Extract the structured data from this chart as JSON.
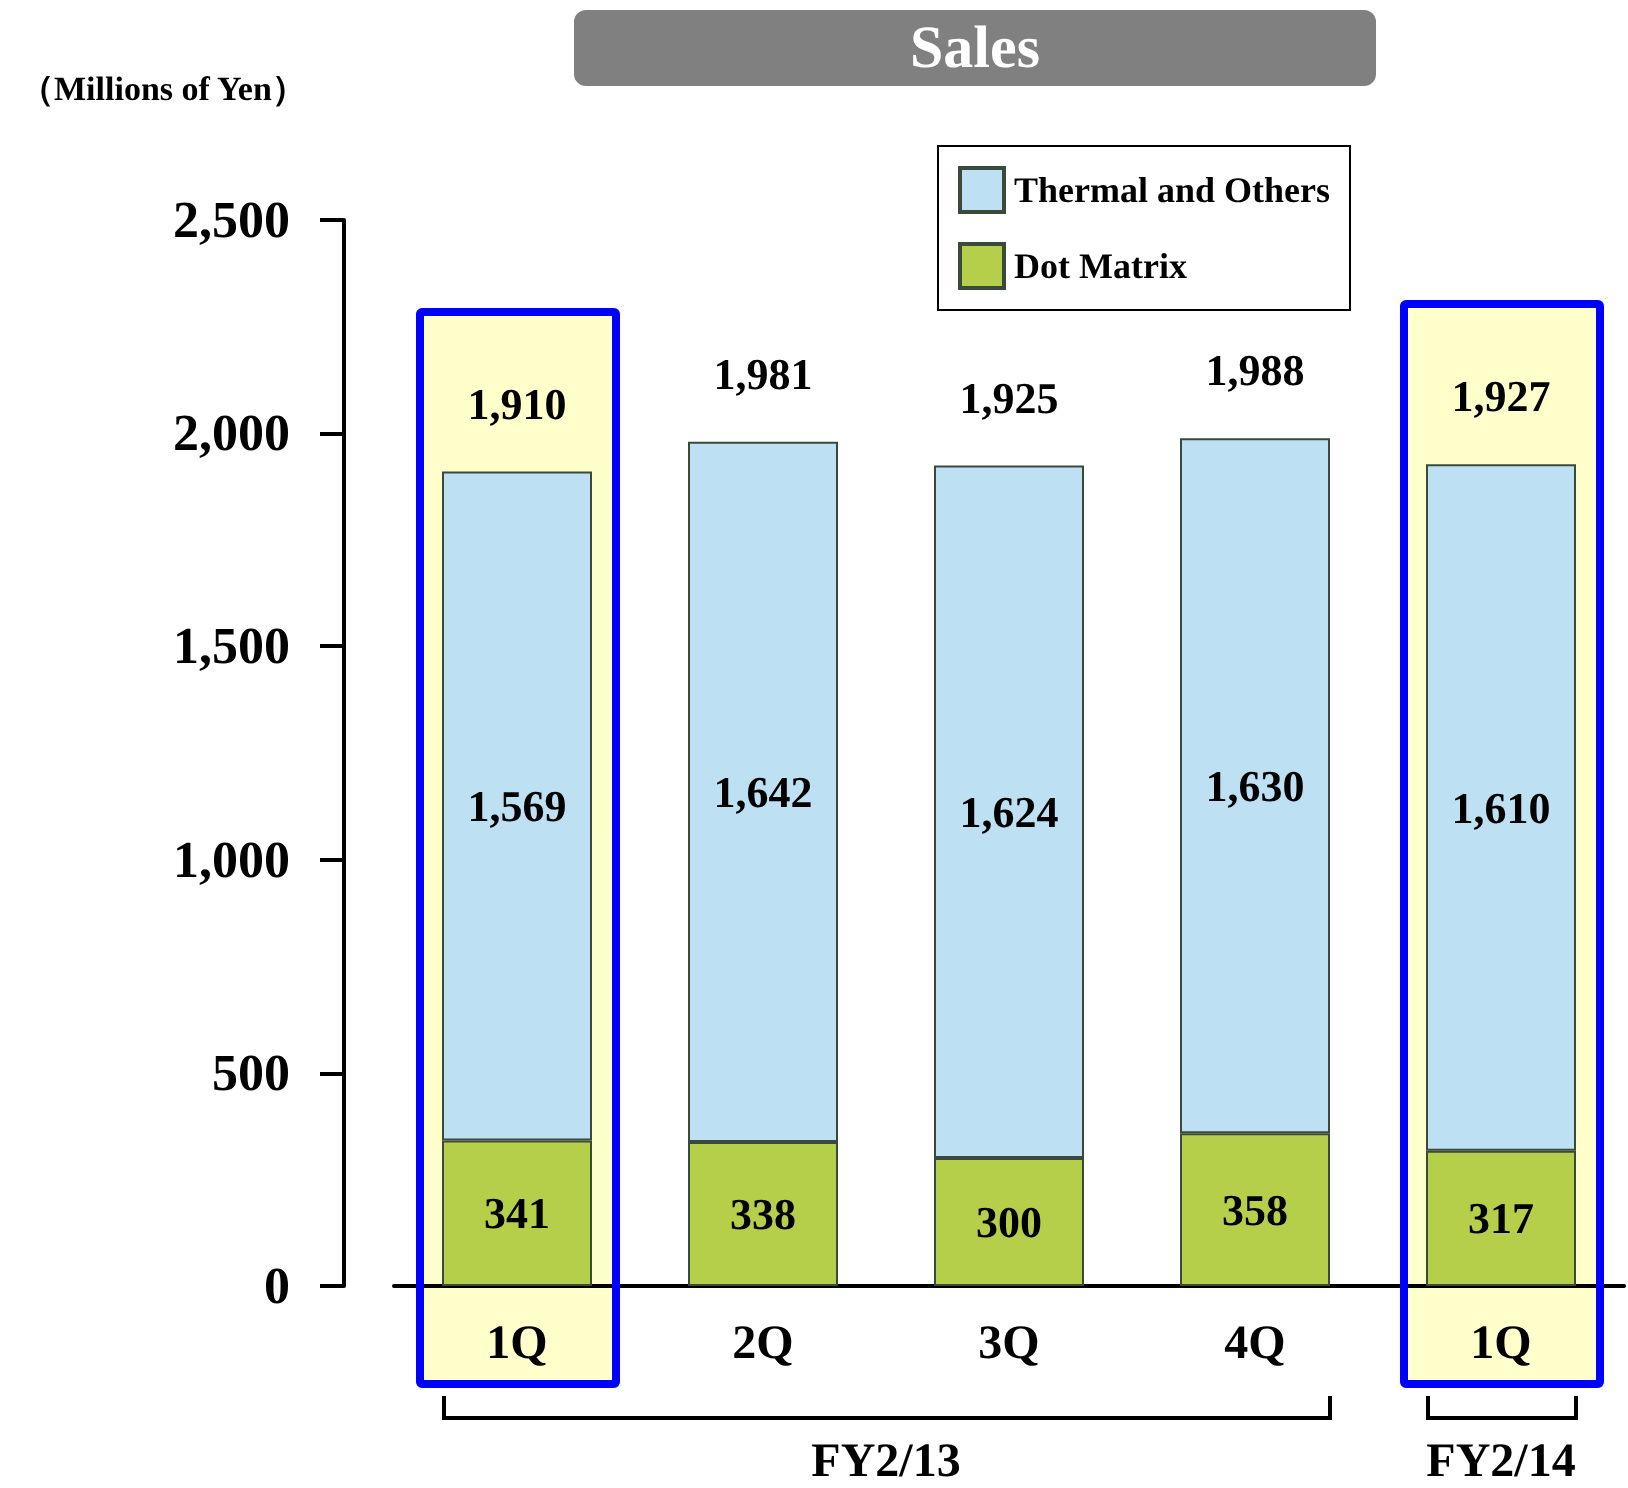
{
  "chart_data": {
    "type": "bar",
    "title": "Sales",
    "ylabel": "（Millions of Yen）",
    "categories": [
      "1Q",
      "2Q",
      "3Q",
      "4Q",
      "1Q"
    ],
    "series": [
      {
        "name": "Dot Matrix",
        "color": "#b5cf4a",
        "values": [
          341,
          338,
          300,
          358,
          317
        ],
        "value_labels": [
          "341",
          "338",
          "300",
          "358",
          "317"
        ]
      },
      {
        "name": "Thermal and Others",
        "color": "#bde0f3",
        "values": [
          1569,
          1642,
          1624,
          1630,
          1610
        ],
        "value_labels": [
          "1,569",
          "1,642",
          "1,624",
          "1,630",
          "1,610"
        ]
      }
    ],
    "stacked": true,
    "ylim": [
      0,
      2500
    ],
    "yticks": [
      0,
      500,
      {
        "value": 1000,
        "label": "1,000"
      },
      {
        "value": 1500,
        "label": "1,500"
      },
      {
        "value": 2000,
        "label": "2,000"
      },
      {
        "value": 2500,
        "label": "2,500"
      }
    ],
    "totals": [
      "1,910",
      "1,981",
      "1,925",
      "1,988",
      "1,927"
    ],
    "legend": "top right",
    "annotations": [
      "FY2/13",
      "FY2/14"
    ]
  }
}
